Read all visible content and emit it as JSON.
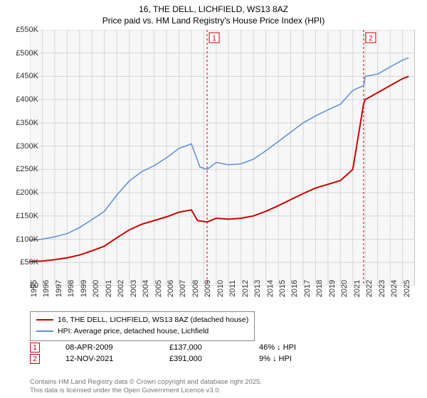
{
  "title_line1": "16, THE DELL, LICHFIELD, WS13 8AZ",
  "title_line2": "Price paid vs. HM Land Registry's House Price Index (HPI)",
  "chart": {
    "type": "line",
    "background_color": "#ffffff",
    "plot_background": "#f7f7f7",
    "grid_color": "#d6d6d6",
    "axis_color": "#888888",
    "xlim": [
      1995,
      2026
    ],
    "ylim": [
      0,
      550
    ],
    "ytick_step": 50,
    "ytick_labels": [
      "£0",
      "£50K",
      "£100K",
      "£150K",
      "£200K",
      "£250K",
      "£300K",
      "£350K",
      "£400K",
      "£450K",
      "£500K",
      "£550K"
    ],
    "xtick_years": [
      1995,
      1996,
      1997,
      1998,
      1999,
      2000,
      2001,
      2002,
      2003,
      2004,
      2005,
      2006,
      2007,
      2008,
      2009,
      2010,
      2011,
      2012,
      2013,
      2014,
      2015,
      2016,
      2017,
      2018,
      2019,
      2020,
      2021,
      2022,
      2023,
      2024,
      2025
    ],
    "series": [
      {
        "name": "property",
        "label": "16, THE DELL, LICHFIELD, WS13 8AZ (detached house)",
        "color": "#cc0000",
        "line_width": 2,
        "data": [
          [
            1995,
            52
          ],
          [
            1996,
            53
          ],
          [
            1997,
            56
          ],
          [
            1998,
            60
          ],
          [
            1999,
            66
          ],
          [
            2000,
            75
          ],
          [
            2001,
            85
          ],
          [
            2002,
            103
          ],
          [
            2003,
            120
          ],
          [
            2004,
            132
          ],
          [
            2005,
            140
          ],
          [
            2006,
            148
          ],
          [
            2007,
            158
          ],
          [
            2008,
            163
          ],
          [
            2008.5,
            140
          ],
          [
            2009.27,
            137
          ],
          [
            2010,
            145
          ],
          [
            2011,
            143
          ],
          [
            2012,
            145
          ],
          [
            2013,
            150
          ],
          [
            2014,
            160
          ],
          [
            2015,
            172
          ],
          [
            2016,
            185
          ],
          [
            2017,
            198
          ],
          [
            2018,
            210
          ],
          [
            2019,
            218
          ],
          [
            2020,
            226
          ],
          [
            2021,
            250
          ],
          [
            2021.87,
            391
          ],
          [
            2022,
            400
          ],
          [
            2023,
            415
          ],
          [
            2024,
            430
          ],
          [
            2025,
            445
          ],
          [
            2025.5,
            450
          ]
        ]
      },
      {
        "name": "hpi",
        "label": "HPI: Average price, detached house, Lichfield",
        "color": "#5b8fd6",
        "line_width": 1.5,
        "data": [
          [
            1995,
            98
          ],
          [
            1996,
            100
          ],
          [
            1997,
            105
          ],
          [
            1998,
            112
          ],
          [
            1999,
            125
          ],
          [
            2000,
            142
          ],
          [
            2001,
            160
          ],
          [
            2002,
            195
          ],
          [
            2003,
            225
          ],
          [
            2004,
            245
          ],
          [
            2005,
            258
          ],
          [
            2006,
            275
          ],
          [
            2007,
            295
          ],
          [
            2008,
            305
          ],
          [
            2008.7,
            255
          ],
          [
            2009.27,
            250
          ],
          [
            2010,
            265
          ],
          [
            2011,
            260
          ],
          [
            2012,
            262
          ],
          [
            2013,
            272
          ],
          [
            2014,
            290
          ],
          [
            2015,
            310
          ],
          [
            2016,
            330
          ],
          [
            2017,
            350
          ],
          [
            2018,
            365
          ],
          [
            2019,
            378
          ],
          [
            2020,
            390
          ],
          [
            2021,
            420
          ],
          [
            2021.87,
            430
          ],
          [
            2022,
            450
          ],
          [
            2023,
            455
          ],
          [
            2024,
            470
          ],
          [
            2025,
            485
          ],
          [
            2025.5,
            490
          ]
        ]
      }
    ],
    "markers": [
      {
        "n": "1",
        "x": 2009.27,
        "color": "#cc0000"
      },
      {
        "n": "2",
        "x": 2021.87,
        "color": "#cc0000"
      }
    ]
  },
  "sales": [
    {
      "n": "1",
      "date": "08-APR-2009",
      "price": "£137,000",
      "diff": "46% ↓ HPI"
    },
    {
      "n": "2",
      "date": "12-NOV-2021",
      "price": "£391,000",
      "diff": "9% ↓ HPI"
    }
  ],
  "footer_line1": "Contains HM Land Registry data © Crown copyright and database right 2025.",
  "footer_line2": "This data is licensed under the Open Government Licence v3.0.",
  "marker_box_color": "#cc0000"
}
